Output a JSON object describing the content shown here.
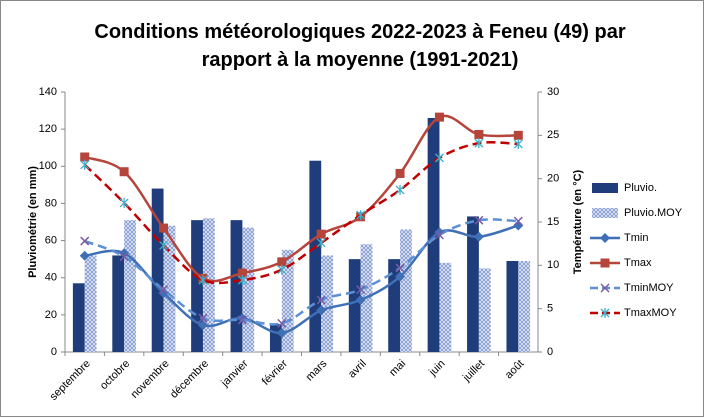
{
  "chart_data": {
    "type": "bar-line",
    "title": "Conditions météorologiques 2022-2023 à Feneu (49) par rapport à la moyenne (1991-2021)",
    "ylabel": "Pluviométrie (en mm)",
    "y2label": "Température (en °C)",
    "categories": [
      "septembre",
      "octobre",
      "novembre",
      "décembre",
      "janvier",
      "février",
      "mars",
      "avril",
      "mai",
      "juin",
      "juillet",
      "août"
    ],
    "ylim": [
      0,
      140
    ],
    "yticks": [
      0,
      20,
      40,
      60,
      80,
      100,
      120,
      140
    ],
    "y2lim": [
      0,
      30
    ],
    "y2ticks": [
      0,
      5,
      10,
      15,
      20,
      25,
      30
    ],
    "legend": "right",
    "series": [
      {
        "name": "Pluvio.",
        "kind": "bar",
        "color": "#1f3d7a",
        "values": [
          37,
          52,
          88,
          71,
          71,
          15,
          103,
          50,
          50,
          126,
          73,
          49
        ]
      },
      {
        "name": "Pluvio.MOY",
        "kind": "bar",
        "fill": "pattern",
        "color": "#8fa3d6",
        "values": [
          52,
          71,
          68,
          72,
          67,
          55,
          52,
          58,
          66,
          48,
          45,
          49
        ]
      },
      {
        "name": "Tmin",
        "kind": "line",
        "axis": "y2",
        "color": "#3f6fb5",
        "marker": "diamond",
        "dash": false,
        "values": [
          11.1,
          11.4,
          6.8,
          3.1,
          3.9,
          2.2,
          4.8,
          6.0,
          8.7,
          13.8,
          13.3,
          14.6
        ]
      },
      {
        "name": "Tmax",
        "kind": "line",
        "axis": "y2",
        "color": "#b5443b",
        "marker": "square",
        "dash": false,
        "values": [
          22.5,
          20.8,
          14.3,
          8.5,
          9.1,
          10.4,
          13.6,
          15.6,
          20.6,
          27.1,
          25.1,
          25.0
        ]
      },
      {
        "name": "TminMOY",
        "kind": "line",
        "axis": "y2",
        "color": "#5b8fd6",
        "marker": "x",
        "dash": true,
        "values": [
          12.8,
          11.0,
          7.2,
          3.9,
          3.7,
          3.3,
          6.0,
          7.2,
          9.7,
          13.5,
          15.2,
          15.1
        ]
      },
      {
        "name": "TmaxMOY",
        "kind": "line",
        "axis": "y2",
        "color": "#c00000",
        "marker": "star",
        "dash": true,
        "values": [
          21.6,
          17.2,
          12.3,
          8.3,
          8.3,
          9.5,
          12.6,
          15.8,
          18.7,
          22.4,
          24.1,
          24.0
        ]
      }
    ]
  }
}
